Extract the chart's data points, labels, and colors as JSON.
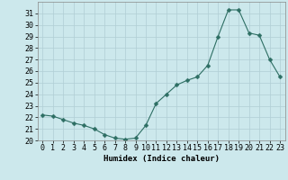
{
  "x": [
    0,
    1,
    2,
    3,
    4,
    5,
    6,
    7,
    8,
    9,
    10,
    11,
    12,
    13,
    14,
    15,
    16,
    17,
    18,
    19,
    20,
    21,
    22,
    23
  ],
  "y": [
    22.2,
    22.1,
    21.8,
    21.5,
    21.3,
    21.0,
    20.5,
    20.2,
    20.1,
    20.2,
    21.3,
    23.2,
    24.0,
    24.8,
    25.2,
    25.5,
    26.5,
    29.0,
    31.3,
    31.3,
    29.3,
    29.1,
    27.0,
    25.5
  ],
  "xlabel": "Humidex (Indice chaleur)",
  "ylim": [
    20,
    32
  ],
  "xlim": [
    -0.5,
    23.5
  ],
  "yticks": [
    20,
    21,
    22,
    23,
    24,
    25,
    26,
    27,
    28,
    29,
    30,
    31
  ],
  "xticks": [
    0,
    1,
    2,
    3,
    4,
    5,
    6,
    7,
    8,
    9,
    10,
    11,
    12,
    13,
    14,
    15,
    16,
    17,
    18,
    19,
    20,
    21,
    22,
    23
  ],
  "line_color": "#2d6e63",
  "marker": "D",
  "marker_size": 2.5,
  "bg_color": "#cce8ec",
  "grid_color": "#b0ced4",
  "label_fontsize": 6.5,
  "tick_fontsize": 6.0
}
